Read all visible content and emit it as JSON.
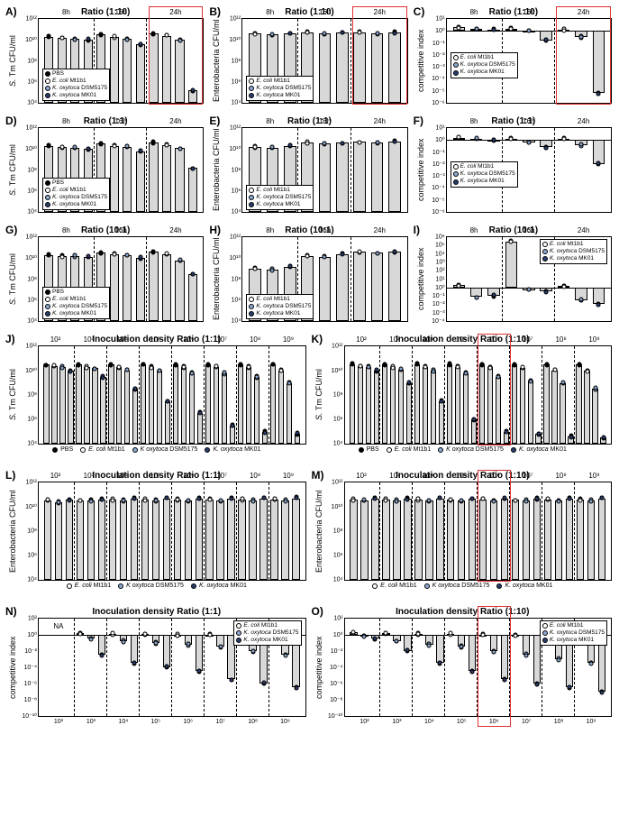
{
  "colors": {
    "bar_fill": "#d8d8d8",
    "bar_stroke": "#000000",
    "bg": "#ffffff",
    "red_highlight": "#e03030",
    "dashed": "#000000",
    "pbs": "#000000",
    "ecoli": "#ffffff",
    "dsm": "#8aa8cf",
    "mk01": "#2a3d6e"
  },
  "fonts": {
    "panel_label_size": 12,
    "title_size": 10,
    "axis_label_size": 9,
    "tick_size": 7,
    "legend_size": 6.5
  },
  "series": {
    "pbs": "PBS",
    "ecoli": "E. coli Mt1b1",
    "dsm": "K. oxytoca DSM5175",
    "mk01": "K. oxytoca MK01"
  },
  "timepoints": [
    "8h",
    "16h",
    "24h"
  ],
  "densities": [
    "10²",
    "10³",
    "10⁴",
    "10⁵",
    "10⁶",
    "10⁷",
    "10⁸",
    "10⁹"
  ],
  "panels": {
    "A": {
      "label": "A)",
      "title": "Ratio (1:10)",
      "ylabel": "S. Tm CFU/ml",
      "type": "bar",
      "ylim": [
        4,
        12
      ],
      "yticks": [
        4,
        6,
        8,
        10,
        12
      ],
      "ytick_labels": [
        "10⁴",
        "10⁶",
        "10⁸",
        "10¹⁰",
        "10¹²"
      ],
      "groups": [
        "8h",
        "16h",
        "24h"
      ],
      "redbox": {
        "group": 2
      },
      "bars_per_group": 4,
      "series_keys": [
        "pbs",
        "ecoli",
        "dsm",
        "mk01"
      ],
      "values": [
        [
          10.3,
          10.2,
          10.1,
          10.0
        ],
        [
          10.5,
          10.3,
          10.1,
          9.6
        ],
        [
          10.6,
          10.4,
          10.0,
          5.2
        ]
      ],
      "legend_pos": "bottom-left"
    },
    "B": {
      "label": "B)",
      "title": "Ratio (1:10)",
      "ylabel": "Enterobacteria CFU/ml",
      "type": "bar",
      "ylim": [
        4,
        12
      ],
      "yticks": [
        4,
        6,
        8,
        10,
        12
      ],
      "ytick_labels": [
        "10⁴",
        "10⁶",
        "10⁸",
        "10¹⁰",
        "10¹²"
      ],
      "groups": [
        "8h",
        "16h",
        "24h"
      ],
      "redbox": {
        "group": 2
      },
      "bars_per_group": 3,
      "series_keys": [
        "ecoli",
        "dsm",
        "mk01"
      ],
      "values": [
        [
          10.6,
          10.5,
          10.6
        ],
        [
          10.7,
          10.6,
          10.7
        ],
        [
          10.7,
          10.6,
          10.7
        ]
      ],
      "legend_pos": "bottom-left"
    },
    "C": {
      "label": "C)",
      "title": "Ratio (1:10)",
      "ylabel": "competitive index",
      "type": "bar",
      "ylim": [
        -6,
        1
      ],
      "yticks": [
        -6,
        -5,
        -4,
        -3,
        -2,
        -1,
        0,
        1
      ],
      "ytick_labels": [
        "10⁻⁶",
        "10⁻⁵",
        "10⁻⁴",
        "10⁻³",
        "10⁻²",
        "10⁻¹",
        "10⁰",
        "10¹"
      ],
      "groups": [
        "8h",
        "16h",
        "24h"
      ],
      "redbox": {
        "group": 2
      },
      "baseline": 0,
      "bars_per_group": 3,
      "series_keys": [
        "ecoli",
        "dsm",
        "mk01"
      ],
      "values": [
        [
          0.3,
          0.2,
          0.1
        ],
        [
          0.2,
          0.0,
          -0.8
        ],
        [
          0.1,
          -0.5,
          -5.2
        ]
      ],
      "legend_pos": "mid-left"
    },
    "D": {
      "label": "D)",
      "title": "Ratio  (1:1)",
      "ylabel": "S. Tm CFU/ml",
      "type": "bar",
      "ylim": [
        4,
        12
      ],
      "yticks": [
        4,
        6,
        8,
        10,
        12
      ],
      "ytick_labels": [
        "10⁴",
        "10⁶",
        "10⁸",
        "10¹⁰",
        "10¹²"
      ],
      "groups": [
        "8h",
        "16h",
        "24h"
      ],
      "bars_per_group": 4,
      "series_keys": [
        "pbs",
        "ecoli",
        "dsm",
        "mk01"
      ],
      "values": [
        [
          10.3,
          10.2,
          10.1,
          10.0
        ],
        [
          10.5,
          10.3,
          10.2,
          9.8
        ],
        [
          10.6,
          10.4,
          10.1,
          8.2
        ]
      ],
      "legend_pos": "bottom-left"
    },
    "E": {
      "label": "E)",
      "title": "Ratio  (1:1)",
      "ylabel": "Enterobacteria CFU/ml",
      "type": "bar",
      "ylim": [
        4,
        12
      ],
      "yticks": [
        4,
        6,
        8,
        10,
        12
      ],
      "ytick_labels": [
        "10⁴",
        "10⁶",
        "10⁸",
        "10¹⁰",
        "10¹²"
      ],
      "groups": [
        "8h",
        "16h",
        "24h"
      ],
      "bars_per_group": 3,
      "series_keys": [
        "ecoli",
        "dsm",
        "mk01"
      ],
      "values": [
        [
          10.2,
          10.1,
          10.3
        ],
        [
          10.6,
          10.5,
          10.6
        ],
        [
          10.7,
          10.6,
          10.7
        ]
      ],
      "legend_pos": "bottom-left"
    },
    "F": {
      "label": "F)",
      "title": "Ratio  (1:1)",
      "ylabel": "competitive index",
      "type": "bar",
      "ylim": [
        -6,
        1
      ],
      "yticks": [
        -6,
        -5,
        -4,
        -3,
        -2,
        -1,
        0,
        1
      ],
      "ytick_labels": [
        "10⁻⁶",
        "10⁻⁵",
        "10⁻⁴",
        "10⁻³",
        "10⁻²",
        "10⁻¹",
        "10⁰",
        "10¹"
      ],
      "groups": [
        "8h",
        "16h",
        "24h"
      ],
      "baseline": 0,
      "bars_per_group": 3,
      "series_keys": [
        "ecoli",
        "dsm",
        "mk01"
      ],
      "values": [
        [
          0.2,
          0.1,
          0.0
        ],
        [
          0.1,
          -0.2,
          -0.6
        ],
        [
          0.1,
          -0.4,
          -2.0
        ]
      ],
      "legend_pos": "mid-left"
    },
    "G": {
      "label": "G)",
      "title": "Ratio (10:1)",
      "ylabel": "S. Tm CFU/ml",
      "type": "bar",
      "ylim": [
        4,
        12
      ],
      "yticks": [
        4,
        6,
        8,
        10,
        12
      ],
      "ytick_labels": [
        "10⁴",
        "10⁶",
        "10⁸",
        "10¹⁰",
        "10¹²"
      ],
      "groups": [
        "8h",
        "16h",
        "24h"
      ],
      "bars_per_group": 4,
      "series_keys": [
        "pbs",
        "ecoli",
        "dsm",
        "mk01"
      ],
      "values": [
        [
          10.3,
          10.2,
          10.2,
          10.1
        ],
        [
          10.5,
          10.4,
          10.3,
          10.0
        ],
        [
          10.6,
          10.4,
          9.8,
          8.5
        ]
      ],
      "legend_pos": "bottom-left"
    },
    "H": {
      "label": "H)",
      "title": "Ratio (10:1)",
      "ylabel": "Enterobacteria CFU/ml",
      "type": "bar",
      "ylim": [
        4,
        12
      ],
      "yticks": [
        4,
        6,
        8,
        10,
        12
      ],
      "ytick_labels": [
        "10⁴",
        "10⁶",
        "10⁸",
        "10¹⁰",
        "10¹²"
      ],
      "groups": [
        "8h",
        "16h",
        "24h"
      ],
      "bars_per_group": 3,
      "series_keys": [
        "ecoli",
        "dsm",
        "mk01"
      ],
      "values": [
        [
          9.0,
          8.9,
          9.2
        ],
        [
          10.2,
          10.1,
          10.4
        ],
        [
          10.6,
          10.5,
          10.6
        ]
      ],
      "legend_pos": "bottom-left"
    },
    "I": {
      "label": "I)",
      "title": "Ratio (10:1)",
      "ylabel": "competitive index",
      "type": "bar",
      "ylim": [
        -4,
        6
      ],
      "yticks": [
        -4,
        -3,
        -2,
        -1,
        0,
        1,
        2,
        3,
        4,
        5,
        6
      ],
      "ytick_labels": [
        "10⁻⁴",
        "10⁻³",
        "10⁻²",
        "10⁻¹",
        "10⁰",
        "10¹",
        "10²",
        "10³",
        "10⁴",
        "10⁵",
        "10⁶"
      ],
      "groups": [
        "8h",
        "16h",
        "24h"
      ],
      "baseline": 0,
      "bars_per_group": 3,
      "series_keys": [
        "ecoli",
        "dsm",
        "mk01"
      ],
      "values": [
        [
          0.3,
          -1.1,
          -1.0
        ],
        [
          5.5,
          -0.3,
          -0.5
        ],
        [
          0.2,
          -1.5,
          -2.0
        ]
      ],
      "legend_pos": "top-right"
    },
    "J": {
      "label": "J)",
      "title": "Inoculation density Ratio (1:1)",
      "ylabel": "S. Tm CFU/ml",
      "type": "bar",
      "ylim": [
        4,
        12
      ],
      "yticks": [
        4,
        6,
        8,
        10,
        12
      ],
      "ytick_labels": [
        "10⁴",
        "10⁶",
        "10⁸",
        "10¹⁰",
        "10¹²"
      ],
      "groups": [
        "10²",
        "10³",
        "10⁴",
        "10⁵",
        "10⁶",
        "10⁷",
        "10⁸",
        "10⁹"
      ],
      "bars_per_group": 4,
      "series_keys": [
        "pbs",
        "ecoli",
        "dsm",
        "mk01"
      ],
      "values": [
        [
          10.5,
          10.4,
          10.3,
          10.0
        ],
        [
          10.5,
          10.3,
          10.2,
          9.5
        ],
        [
          10.5,
          10.3,
          10.0,
          8.5
        ],
        [
          10.5,
          10.3,
          10.0,
          7.5
        ],
        [
          10.5,
          10.3,
          9.8,
          6.5
        ],
        [
          10.5,
          10.3,
          9.8,
          5.5
        ],
        [
          10.5,
          10.3,
          9.5,
          5.0
        ],
        [
          10.5,
          10.0,
          9.0,
          4.8
        ]
      ],
      "legend_h": true
    },
    "K": {
      "label": "K)",
      "title": "Inoculation density Ratio (1:10)",
      "ylabel": "S. Tm CFU/ml",
      "type": "bar",
      "ylim": [
        4,
        12
      ],
      "yticks": [
        4,
        6,
        8,
        10,
        12
      ],
      "ytick_labels": [
        "10⁴",
        "10⁶",
        "10⁸",
        "10¹⁰",
        "10¹²"
      ],
      "groups": [
        "10²",
        "10³",
        "10⁴",
        "10⁵",
        "10⁶",
        "10⁷",
        "10⁸",
        "10⁹"
      ],
      "redbox": {
        "group": 4
      },
      "bars_per_group": 4,
      "series_keys": [
        "pbs",
        "ecoli",
        "dsm",
        "mk01"
      ],
      "values": [
        [
          10.5,
          10.4,
          10.3,
          10.0
        ],
        [
          10.5,
          10.3,
          10.1,
          9.0
        ],
        [
          10.5,
          10.3,
          10.0,
          7.5
        ],
        [
          10.5,
          10.3,
          9.8,
          6.0
        ],
        [
          10.5,
          10.3,
          9.5,
          5.0
        ],
        [
          10.5,
          10.2,
          9.2,
          4.8
        ],
        [
          10.5,
          10.0,
          9.0,
          4.6
        ],
        [
          10.5,
          10.0,
          8.5,
          4.5
        ]
      ],
      "legend_h": true
    },
    "L": {
      "label": "L)",
      "title": "Inoculation density Ratio (1:1)",
      "ylabel": "Enterobacteria CFU/ml",
      "type": "bar",
      "ylim": [
        4,
        12
      ],
      "yticks": [
        4,
        6,
        8,
        10,
        12
      ],
      "ytick_labels": [
        "10⁴",
        "10⁶",
        "10⁸",
        "10¹⁰",
        "10¹²"
      ],
      "groups": [
        "10²",
        "10³",
        "10⁴",
        "10⁵",
        "10⁶",
        "10⁷",
        "10⁸",
        "10⁹"
      ],
      "bars_per_group": 3,
      "series_keys": [
        "ecoli",
        "dsm",
        "mk01"
      ],
      "values": [
        [
          10.5,
          10.4,
          10.6
        ],
        [
          10.5,
          10.5,
          10.6
        ],
        [
          10.6,
          10.5,
          10.7
        ],
        [
          10.6,
          10.5,
          10.7
        ],
        [
          10.6,
          10.5,
          10.7
        ],
        [
          10.6,
          10.5,
          10.7
        ],
        [
          10.6,
          10.5,
          10.7
        ],
        [
          10.6,
          10.5,
          10.7
        ]
      ],
      "legend_h": true
    },
    "M": {
      "label": "M)",
      "title": "Inoculation density Ratio (1:10)",
      "ylabel": "Enterobacteria CFU/ml",
      "type": "bar",
      "ylim": [
        4,
        12
      ],
      "yticks": [
        4,
        6,
        8,
        10,
        12
      ],
      "ytick_labels": [
        "10⁴",
        "10⁶",
        "10⁸",
        "10¹⁰",
        "10¹²"
      ],
      "groups": [
        "10²",
        "10³",
        "10⁴",
        "10⁵",
        "10⁶",
        "10⁷",
        "10⁸",
        "10⁹"
      ],
      "redbox": {
        "group": 4
      },
      "bars_per_group": 3,
      "series_keys": [
        "ecoli",
        "dsm",
        "mk01"
      ],
      "values": [
        [
          10.6,
          10.5,
          10.7
        ],
        [
          10.6,
          10.5,
          10.7
        ],
        [
          10.6,
          10.5,
          10.7
        ],
        [
          10.6,
          10.5,
          10.7
        ],
        [
          10.6,
          10.5,
          10.7
        ],
        [
          10.6,
          10.5,
          10.7
        ],
        [
          10.6,
          10.5,
          10.7
        ],
        [
          10.6,
          10.5,
          10.7
        ]
      ],
      "legend_h": true
    },
    "N": {
      "label": "N)",
      "title": "Inoculation density  Ratio (1:1)",
      "ylabel": "competitive index",
      "type": "bar",
      "ylim": [
        -10,
        2
      ],
      "yticks": [
        -10,
        -8,
        -6,
        -4,
        -2,
        0,
        2
      ],
      "ytick_labels": [
        "10⁻¹⁰",
        "10⁻⁸",
        "10⁻⁶",
        "10⁻⁴",
        "10⁻²",
        "10⁰",
        "10²"
      ],
      "groups": [
        "10²",
        "10³",
        "10⁴",
        "10⁵",
        "10⁶",
        "10⁷",
        "10⁸",
        "10⁹"
      ],
      "baseline": 0,
      "na_group": 0,
      "bars_per_group": 3,
      "series_keys": [
        "ecoli",
        "dsm",
        "mk01"
      ],
      "values": [
        [
          0,
          0,
          0
        ],
        [
          0.2,
          -0.5,
          -2.5
        ],
        [
          0.1,
          -0.8,
          -3.5
        ],
        [
          0.1,
          -1.0,
          -4.0
        ],
        [
          0.0,
          -1.2,
          -4.5
        ],
        [
          0.0,
          -1.5,
          -5.5
        ],
        [
          -0.1,
          -2.0,
          -6.0
        ],
        [
          -0.2,
          -2.5,
          -6.5
        ]
      ],
      "legend_pos": "top-right",
      "xaxis_bottom": true
    },
    "O": {
      "label": "O)",
      "title": "Inoculation density Ratio (1:10)",
      "ylabel": "competitive index",
      "type": "bar",
      "ylim": [
        -10,
        2
      ],
      "yticks": [
        -10,
        -8,
        -6,
        -4,
        -2,
        0,
        2
      ],
      "ytick_labels": [
        "10⁻¹⁰",
        "10⁻⁸",
        "10⁻⁶",
        "10⁻⁴",
        "10⁻²",
        "10⁰",
        "10²"
      ],
      "groups": [
        "10²",
        "10³",
        "10⁴",
        "10⁵",
        "10⁶",
        "10⁷",
        "10⁸",
        "10⁹"
      ],
      "baseline": 0,
      "redbox": {
        "group": 4
      },
      "bars_per_group": 3,
      "series_keys": [
        "ecoli",
        "dsm",
        "mk01"
      ],
      "values": [
        [
          0.3,
          -0.2,
          -0.5
        ],
        [
          0.2,
          -0.8,
          -2.0
        ],
        [
          0.1,
          -1.2,
          -3.5
        ],
        [
          0.1,
          -1.5,
          -4.5
        ],
        [
          0.0,
          -2.0,
          -5.5
        ],
        [
          0.0,
          -2.5,
          -6.0
        ],
        [
          -0.1,
          -3.0,
          -6.5
        ],
        [
          -0.2,
          -3.5,
          -7.0
        ]
      ],
      "legend_pos": "top-right",
      "xaxis_bottom": true
    }
  }
}
